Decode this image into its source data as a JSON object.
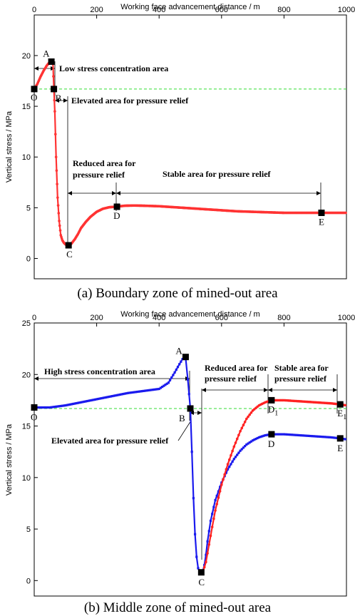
{
  "chart_data": [
    {
      "type": "line",
      "caption": "(a) Boundary zone of mined-out area",
      "xlabel": "Working face advancement distance / m",
      "ylabel": "Vertical stress / MPa",
      "xlim": [
        0,
        1000
      ],
      "ylim": [
        -2,
        24
      ],
      "x_ticks": [
        0,
        200,
        400,
        600,
        800,
        1000
      ],
      "y_ticks": [
        0,
        5,
        10,
        15,
        20
      ],
      "reference_line": {
        "y": 16.7,
        "color": "#33dd33"
      },
      "series": [
        {
          "color": "#ff3333",
          "x": [
            0,
            10,
            20,
            30,
            40,
            48,
            55,
            60,
            63,
            66,
            70,
            75,
            80,
            85,
            90,
            95,
            100,
            105,
            110,
            115,
            120,
            130,
            140,
            150,
            165,
            180,
            200,
            220,
            240,
            260,
            290,
            320,
            350,
            400,
            450,
            500,
            550,
            600,
            650,
            700,
            750,
            800,
            850,
            900,
            920,
            950,
            1000
          ],
          "y": [
            16.7,
            17.2,
            17.9,
            18.5,
            19.0,
            19.3,
            19.4,
            19.2,
            16.7,
            14.5,
            10.0,
            6.0,
            3.7,
            2.3,
            1.8,
            1.55,
            1.4,
            1.3,
            1.3,
            1.35,
            1.5,
            1.9,
            2.4,
            3.0,
            3.6,
            4.1,
            4.6,
            4.9,
            5.05,
            5.1,
            5.2,
            5.22,
            5.2,
            5.15,
            5.05,
            4.95,
            4.85,
            4.75,
            4.65,
            4.6,
            4.55,
            4.5,
            4.5,
            4.5,
            4.5,
            4.5,
            4.5
          ]
        }
      ],
      "points": [
        {
          "label": "O",
          "x": 0,
          "y": 16.7
        },
        {
          "label": "A",
          "x": 55,
          "y": 19.4
        },
        {
          "label": "B",
          "x": 63,
          "y": 16.7
        },
        {
          "label": "C",
          "x": 110,
          "y": 1.3
        },
        {
          "label": "D",
          "x": 265,
          "y": 5.1
        },
        {
          "label": "E",
          "x": 920,
          "y": 4.5
        }
      ],
      "annotations": [
        {
          "text": "Low stress concentration area"
        },
        {
          "text": "Elevated area for pressure relief"
        },
        {
          "text": "Reduced area for"
        },
        {
          "text": "pressure relief"
        },
        {
          "text": "Stable area for pressure relief"
        }
      ]
    },
    {
      "type": "line",
      "caption": "(b) Middle zone of mined-out area",
      "xlabel": "Working face advancement distance / m",
      "ylabel": "Vertical stress / MPa",
      "xlim": [
        0,
        1000
      ],
      "ylim": [
        -1.5,
        25
      ],
      "x_ticks": [
        0,
        200,
        400,
        600,
        800,
        1000
      ],
      "y_ticks": [
        0,
        5,
        10,
        15,
        20,
        25
      ],
      "reference_line": {
        "y": 16.7,
        "color": "#33dd33"
      },
      "series": [
        {
          "color": "#1a1aee",
          "x": [
            0,
            50,
            100,
            150,
            200,
            250,
            300,
            350,
            400,
            430,
            450,
            465,
            475,
            485,
            492,
            500,
            505,
            510,
            515,
            520,
            525,
            530,
            535,
            540,
            545,
            550,
            555,
            565,
            580,
            600,
            620,
            640,
            660,
            680,
            700,
            720,
            740,
            760,
            800,
            850,
            900,
            950,
            980,
            1000
          ],
          "y": [
            16.8,
            16.8,
            17.0,
            17.3,
            17.6,
            17.9,
            18.2,
            18.4,
            18.6,
            19.2,
            20.2,
            21.0,
            21.5,
            21.6,
            19.5,
            16.7,
            12.5,
            8.0,
            4.5,
            2.3,
            1.2,
            0.9,
            0.8,
            0.9,
            1.5,
            2.5,
            3.8,
            5.8,
            7.8,
            9.5,
            10.8,
            11.8,
            12.6,
            13.2,
            13.6,
            13.9,
            14.1,
            14.2,
            14.2,
            14.1,
            14.0,
            13.9,
            13.8,
            13.7
          ]
        },
        {
          "color": "#ff2222",
          "x": [
            540,
            550,
            560,
            570,
            580,
            600,
            620,
            640,
            660,
            680,
            700,
            720,
            740,
            760,
            800,
            850,
            900,
            950,
            980,
            1000
          ],
          "y": [
            0.8,
            1.8,
            3.5,
            5.2,
            6.8,
            9.3,
            11.3,
            13.0,
            14.5,
            15.7,
            16.5,
            17.0,
            17.3,
            17.5,
            17.5,
            17.4,
            17.3,
            17.2,
            17.1,
            17.0
          ]
        }
      ],
      "points": [
        {
          "label": "O",
          "x": 0,
          "y": 16.8
        },
        {
          "label": "A",
          "x": 485,
          "y": 21.7
        },
        {
          "label": "B",
          "x": 500,
          "y": 16.7
        },
        {
          "label": "C",
          "x": 535,
          "y": 0.8
        },
        {
          "label": "D",
          "x": 760,
          "y": 14.2
        },
        {
          "label": "E",
          "x": 980,
          "y": 13.8
        },
        {
          "label": "D1",
          "x": 760,
          "y": 17.5
        },
        {
          "label": "E1",
          "x": 980,
          "y": 17.1
        }
      ],
      "annotations": [
        {
          "text": "High stress concentration area"
        },
        {
          "text": "Reduced area for"
        },
        {
          "text": "pressure relief"
        },
        {
          "text": "Stable area for"
        },
        {
          "text": "pressure relief"
        },
        {
          "text": "Elevated area for pressure relief"
        }
      ]
    }
  ]
}
